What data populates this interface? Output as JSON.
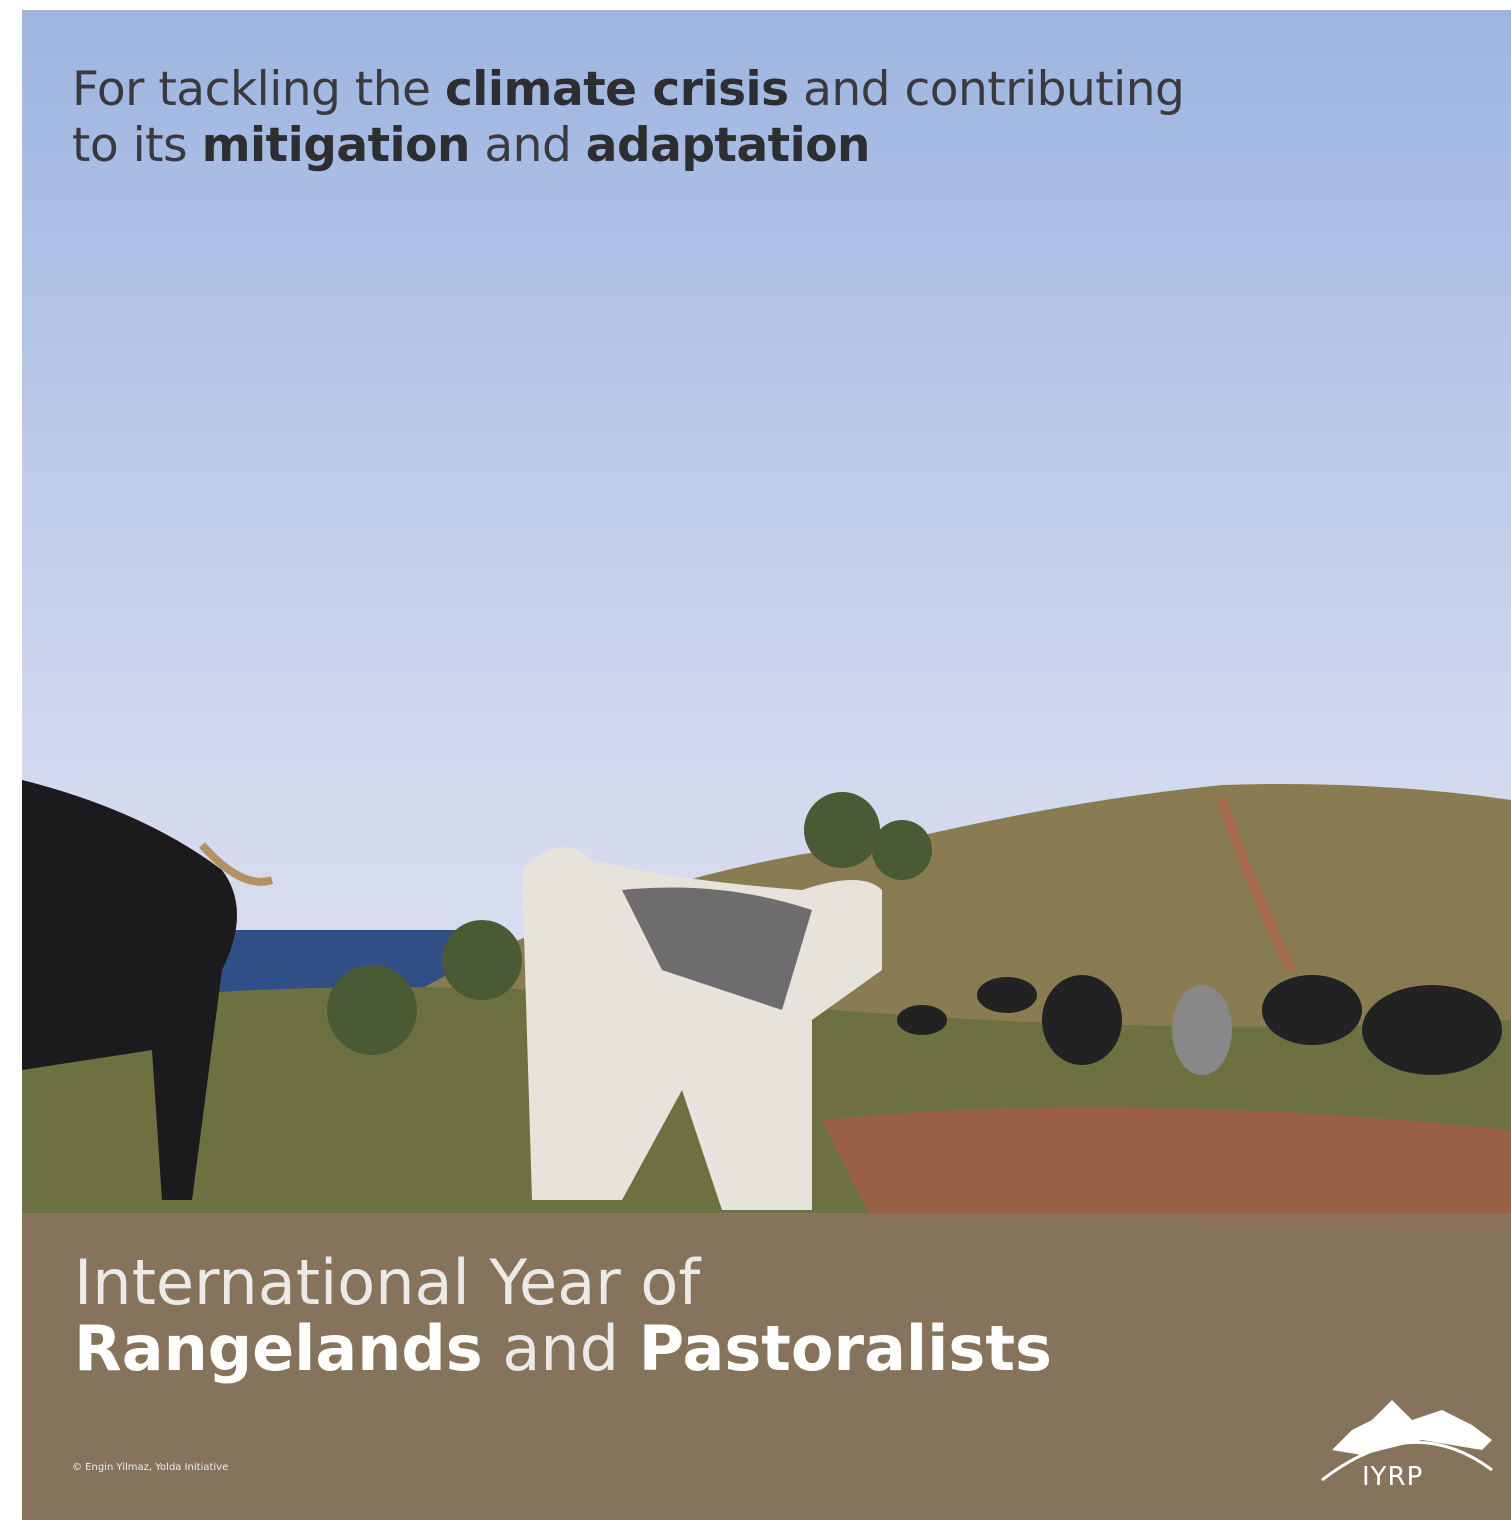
{
  "headline": {
    "line1": [
      "For tackling the",
      "climate crisis",
      "and contributing"
    ],
    "line2": [
      "to its",
      "mitigation",
      "and",
      "adaptation"
    ]
  },
  "title": {
    "line1": "International Year of",
    "line2": [
      "Rangelands",
      "and",
      "Pastoralists"
    ]
  },
  "credit": "© Engin Yilmaz, Yolda Initiative",
  "logo": "IYRP"
}
